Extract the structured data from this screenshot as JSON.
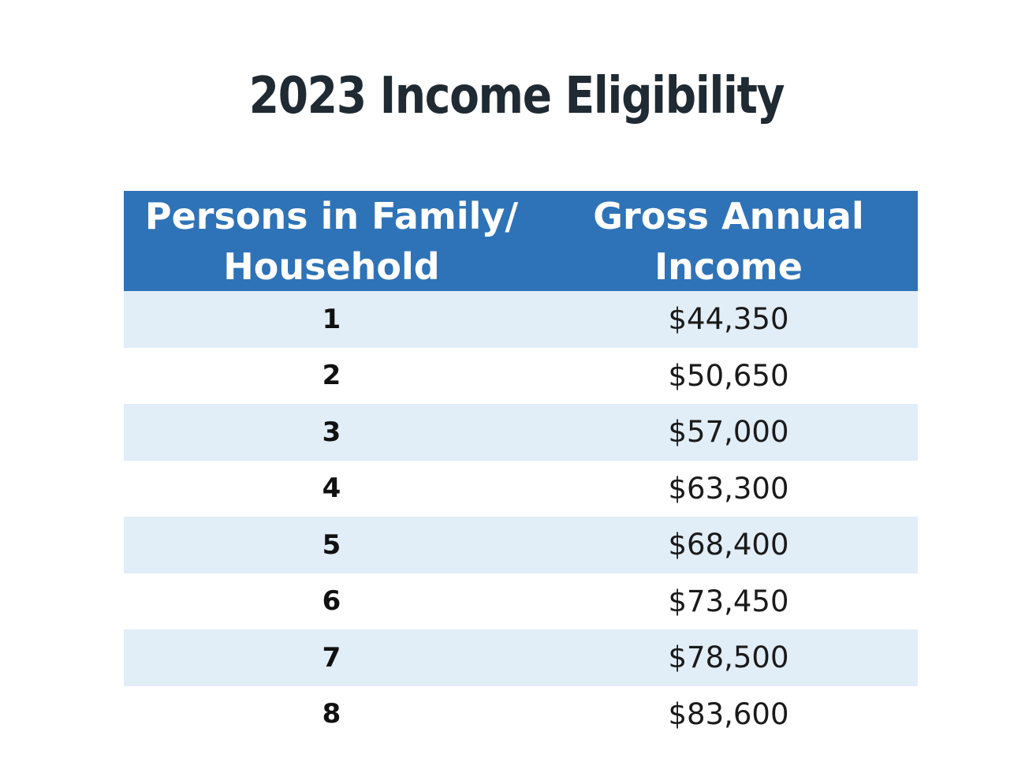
{
  "title": "2023 Income Eligibility",
  "table": {
    "headers": {
      "persons_line1": "Persons in Family/",
      "persons_line2": "Household",
      "income_line1": "Gross Annual",
      "income_line2": "Income"
    },
    "rows": [
      {
        "persons": "1",
        "income": "$44,350"
      },
      {
        "persons": "2",
        "income": "$50,650"
      },
      {
        "persons": "3",
        "income": "$57,000"
      },
      {
        "persons": "4",
        "income": "$63,300"
      },
      {
        "persons": "5",
        "income": "$68,400"
      },
      {
        "persons": "6",
        "income": "$73,450"
      },
      {
        "persons": "7",
        "income": "$78,500"
      },
      {
        "persons": "8",
        "income": "$83,600"
      }
    ]
  },
  "colors": {
    "header_bg": "#2e73b7",
    "shaded_row": "#e1edf7",
    "title": "#1f2a33"
  }
}
